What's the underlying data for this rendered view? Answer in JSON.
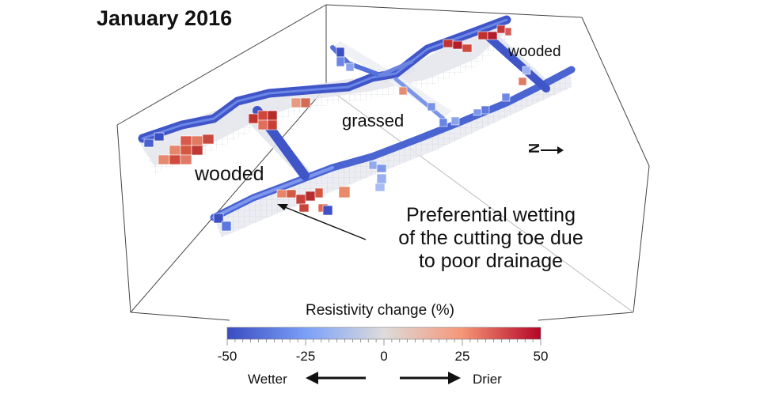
{
  "title": "January 2016",
  "labels": {
    "wooded_left": "wooded",
    "wooded_right": "wooded",
    "grassed": "grassed",
    "north": "N"
  },
  "annotation": {
    "line1": "Preferential wetting",
    "line2": "of the cutting toe due",
    "line3": "to poor drainage"
  },
  "colorbar": {
    "title": "Resistivity change (%)",
    "ticks": [
      "-50",
      "-25",
      "0",
      "25",
      "50"
    ],
    "min": -50,
    "max": 50,
    "colors": [
      "#3a4cc0",
      "#dcdde3",
      "#b40426"
    ],
    "left_label": "Wetter",
    "right_label": "Drier"
  }
}
